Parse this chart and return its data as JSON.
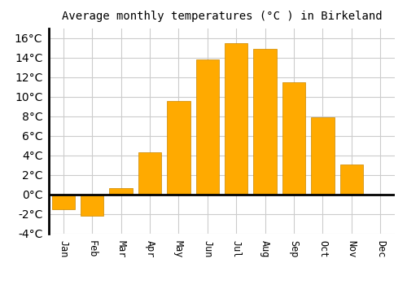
{
  "title": "Average monthly temperatures (°C ) in Birkeland",
  "months": [
    "Jan",
    "Feb",
    "Mar",
    "Apr",
    "May",
    "Jun",
    "Jul",
    "Aug",
    "Sep",
    "Oct",
    "Nov",
    "Dec"
  ],
  "temperatures": [
    -1.5,
    -2.2,
    0.7,
    4.3,
    9.6,
    13.8,
    15.5,
    14.9,
    11.5,
    7.9,
    3.1,
    0.0
  ],
  "bar_color": "#FFAA00",
  "bar_edge_color": "#CC8800",
  "background_color": "#ffffff",
  "grid_color": "#cccccc",
  "ylim": [
    -4,
    17
  ],
  "yticks": [
    -4,
    -2,
    0,
    2,
    4,
    6,
    8,
    10,
    12,
    14,
    16
  ],
  "title_fontsize": 10,
  "tick_fontsize": 8.5,
  "zero_line_color": "#000000",
  "figsize": [
    5.0,
    3.5
  ],
  "dpi": 100
}
